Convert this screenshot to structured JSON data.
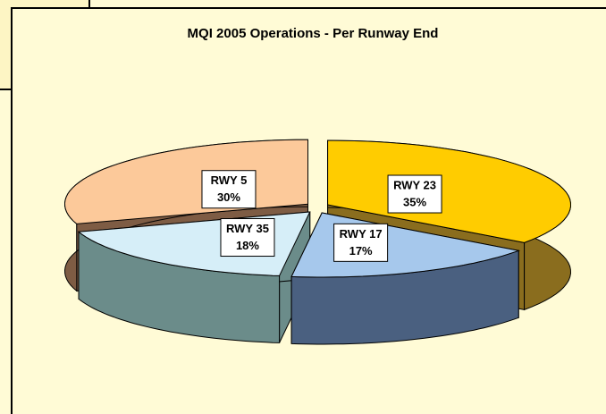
{
  "chart_data": {
    "type": "pie",
    "title": "MQI 2005 Operations - Per Runway End",
    "categories": [
      "RWY 23",
      "RWY 17",
      "RWY 35",
      "RWY 5"
    ],
    "values": [
      35,
      17,
      18,
      30
    ],
    "value_labels": [
      "35%",
      "17%",
      "18%",
      "30%"
    ],
    "colors": [
      "#ffcc00",
      "#a6c8ec",
      "#d6eef8",
      "#fcc99a"
    ],
    "side_colors": [
      "#8a6d1e",
      "#4a6080",
      "#6b8c8a",
      "#7e5c44"
    ]
  }
}
